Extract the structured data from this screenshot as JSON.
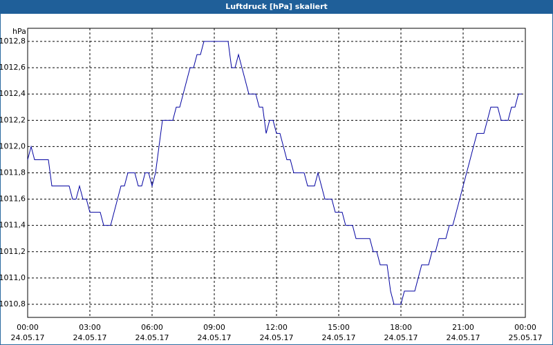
{
  "chart_data": {
    "type": "line",
    "title": "Luftdruck [hPa] skaliert",
    "y_unit": "hPa",
    "x": [
      0,
      10,
      20,
      60,
      70,
      120,
      130,
      140,
      150,
      160,
      170,
      180,
      210,
      220,
      240,
      250,
      260,
      270,
      280,
      290,
      310,
      320,
      330,
      340,
      350,
      360,
      370,
      380,
      390,
      420,
      430,
      440,
      450,
      460,
      470,
      480,
      490,
      500,
      510,
      580,
      590,
      600,
      610,
      620,
      630,
      640,
      660,
      670,
      680,
      690,
      700,
      710,
      720,
      730,
      740,
      750,
      760,
      770,
      800,
      810,
      830,
      840,
      850,
      860,
      880,
      890,
      910,
      920,
      940,
      950,
      990,
      1000,
      1010,
      1020,
      1040,
      1050,
      1060,
      1080,
      1090,
      1120,
      1130,
      1140,
      1160,
      1170,
      1180,
      1190,
      1210,
      1220,
      1230,
      1240,
      1250,
      1260,
      1270,
      1280,
      1290,
      1300,
      1320,
      1330,
      1340,
      1360,
      1370,
      1390,
      1400,
      1410,
      1420,
      1430
    ],
    "series": [
      {
        "color": "#0000a0",
        "values": [
          1011.9,
          1012.0,
          1011.9,
          1011.9,
          1011.7,
          1011.7,
          1011.6,
          1011.6,
          1011.7,
          1011.6,
          1011.6,
          1011.5,
          1011.5,
          1011.4,
          1011.4,
          1011.5,
          1011.6,
          1011.7,
          1011.7,
          1011.8,
          1011.8,
          1011.7,
          1011.7,
          1011.8,
          1011.8,
          1011.7,
          1011.8,
          1012.0,
          1012.2,
          1012.2,
          1012.3,
          1012.3,
          1012.4,
          1012.5,
          1012.6,
          1012.6,
          1012.7,
          1012.7,
          1012.8,
          1012.8,
          1012.6,
          1012.6,
          1012.7,
          1012.6,
          1012.5,
          1012.4,
          1012.4,
          1012.3,
          1012.3,
          1012.1,
          1012.2,
          1012.2,
          1012.1,
          1012.1,
          1012.0,
          1011.9,
          1011.9,
          1011.8,
          1011.8,
          1011.7,
          1011.7,
          1011.8,
          1011.7,
          1011.6,
          1011.6,
          1011.5,
          1011.5,
          1011.4,
          1011.4,
          1011.3,
          1011.3,
          1011.2,
          1011.2,
          1011.1,
          1011.1,
          1010.9,
          1010.8,
          1010.8,
          1010.9,
          1010.9,
          1011.0,
          1011.1,
          1011.1,
          1011.2,
          1011.2,
          1011.3,
          1011.3,
          1011.4,
          1011.4,
          1011.5,
          1011.6,
          1011.7,
          1011.8,
          1011.9,
          1012.0,
          1012.1,
          1012.1,
          1012.2,
          1012.3,
          1012.3,
          1012.2,
          1012.2,
          1012.3,
          1012.3,
          1012.4,
          1012.4
        ]
      }
    ],
    "xlim": [
      0,
      1440
    ],
    "xticks": [
      {
        "value": 0,
        "label": "00:00"
      },
      {
        "value": 180,
        "label": "03:00"
      },
      {
        "value": 360,
        "label": "06:00"
      },
      {
        "value": 540,
        "label": "09:00"
      },
      {
        "value": 720,
        "label": "12:00"
      },
      {
        "value": 900,
        "label": "15:00"
      },
      {
        "value": 1080,
        "label": "18:00"
      },
      {
        "value": 1260,
        "label": "21:00"
      },
      {
        "value": 1440,
        "label": "00:00"
      }
    ],
    "xtick_dates": [
      "24.05.17",
      "24.05.17",
      "24.05.17",
      "24.05.17",
      "24.05.17",
      "24.05.17",
      "24.05.17",
      "24.05.17",
      "25.05.17"
    ],
    "ylim": [
      1010.7,
      1012.9
    ],
    "yticks": [
      {
        "value": 1010.8,
        "label": "1010,8"
      },
      {
        "value": 1011.0,
        "label": "1011,0"
      },
      {
        "value": 1011.2,
        "label": "1011,2"
      },
      {
        "value": 1011.4,
        "label": "1011,4"
      },
      {
        "value": 1011.6,
        "label": "1011,6"
      },
      {
        "value": 1011.8,
        "label": "1011,8"
      },
      {
        "value": 1012.0,
        "label": "1012,0"
      },
      {
        "value": 1012.2,
        "label": "1012,2"
      },
      {
        "value": 1012.4,
        "label": "1012,4"
      },
      {
        "value": 1012.6,
        "label": "1012,6"
      },
      {
        "value": 1012.8,
        "label": "1012,8"
      }
    ],
    "grid": true
  }
}
